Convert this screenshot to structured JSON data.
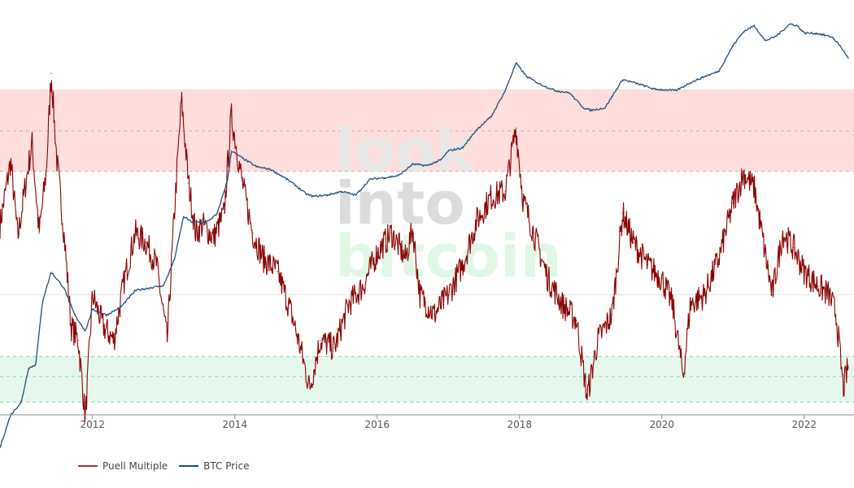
{
  "watermark": {
    "line1": "look",
    "line2": "into",
    "line3": "bitcoin"
  },
  "colors": {
    "puell": "#8b0000",
    "puell_zone": "#c06060",
    "btc": "#1f4e79",
    "red_band": "#ffdede",
    "green_band": "#e6f8ee",
    "red_dash": "#e8a0a0",
    "green_dash": "#7fd99a",
    "grid": "#e6e6e6",
    "axis": "#888888"
  },
  "chart_data": {
    "type": "line",
    "title": "",
    "xlabel": "",
    "ylabel": "",
    "xlim": [
      2010.7,
      2022.7
    ],
    "x_ticks": [
      2012,
      2014,
      2016,
      2018,
      2020,
      2022
    ],
    "x_tick_labels": [
      "2012",
      "2014",
      "2016",
      "2018",
      "2020",
      "2022"
    ],
    "red_zone": [
      4,
      10
    ],
    "green_zone": [
      0.3,
      0.5
    ],
    "puell_ylim": [
      0.26,
      25
    ],
    "btc_ylim": [
      0.2,
      100000
    ],
    "series": [
      {
        "name": "Puell Multiple",
        "axis": "left-log",
        "x": [
          2010.7,
          2010.85,
          2010.95,
          2011.05,
          2011.15,
          2011.25,
          2011.35,
          2011.42,
          2011.5,
          2011.6,
          2011.7,
          2011.8,
          2011.9,
          2012.0,
          2012.15,
          2012.3,
          2012.45,
          2012.6,
          2012.75,
          2012.9,
          2013.05,
          2013.15,
          2013.25,
          2013.35,
          2013.45,
          2013.55,
          2013.7,
          2013.85,
          2013.95,
          2014.1,
          2014.25,
          2014.4,
          2014.6,
          2014.8,
          2014.95,
          2015.05,
          2015.2,
          2015.4,
          2015.6,
          2015.8,
          2016.0,
          2016.2,
          2016.4,
          2016.5,
          2016.6,
          2016.8,
          2017.0,
          2017.2,
          2017.4,
          2017.6,
          2017.8,
          2017.95,
          2018.05,
          2018.2,
          2018.4,
          2018.6,
          2018.8,
          2018.95,
          2019.1,
          2019.3,
          2019.45,
          2019.6,
          2019.8,
          2020.0,
          2020.15,
          2020.3,
          2020.4,
          2020.6,
          2020.8,
          2021.0,
          2021.15,
          2021.3,
          2021.45,
          2021.55,
          2021.7,
          2021.85,
          2022.0,
          2022.2,
          2022.35,
          2022.45,
          2022.55,
          2022.62
        ],
        "values": [
          2.2,
          4.5,
          1.9,
          3.3,
          5.5,
          2.0,
          4.0,
          12.0,
          4.5,
          2.0,
          0.7,
          0.6,
          0.25,
          1.0,
          0.7,
          0.6,
          1.2,
          2.0,
          1.8,
          1.4,
          0.6,
          2.5,
          9.0,
          3.5,
          2.0,
          2.2,
          1.9,
          2.5,
          7.5,
          3.6,
          2.0,
          1.5,
          1.3,
          0.8,
          0.5,
          0.35,
          0.6,
          0.55,
          0.9,
          1.1,
          1.6,
          2.0,
          1.5,
          2.1,
          1.0,
          0.8,
          1.0,
          1.4,
          2.3,
          3.0,
          3.2,
          6.5,
          2.9,
          2.0,
          1.2,
          0.9,
          0.75,
          0.32,
          0.6,
          0.8,
          2.5,
          1.8,
          1.4,
          1.2,
          0.9,
          0.4,
          0.9,
          1.0,
          1.5,
          2.8,
          3.9,
          3.3,
          1.6,
          1.0,
          2.0,
          1.7,
          1.3,
          1.1,
          1.0,
          0.8,
          0.35,
          0.45
        ]
      },
      {
        "name": "BTC Price",
        "axis": "right-log",
        "x": [
          2010.7,
          2010.85,
          2011.0,
          2011.1,
          2011.2,
          2011.3,
          2011.42,
          2011.6,
          2011.75,
          2011.9,
          2012.0,
          2012.2,
          2012.4,
          2012.6,
          2012.8,
          2013.0,
          2013.15,
          2013.28,
          2013.4,
          2013.6,
          2013.75,
          2013.9,
          2013.95,
          2014.1,
          2014.3,
          2014.5,
          2014.7,
          2014.85,
          2015.0,
          2015.1,
          2015.3,
          2015.5,
          2015.7,
          2015.9,
          2016.1,
          2016.3,
          2016.5,
          2016.7,
          2016.9,
          2017.0,
          2017.2,
          2017.4,
          2017.6,
          2017.8,
          2017.95,
          2018.1,
          2018.3,
          2018.5,
          2018.7,
          2018.9,
          2019.0,
          2019.2,
          2019.45,
          2019.7,
          2019.9,
          2020.2,
          2020.4,
          2020.6,
          2020.8,
          2021.0,
          2021.15,
          2021.3,
          2021.45,
          2021.6,
          2021.8,
          2021.9,
          2022.0,
          2022.2,
          2022.4,
          2022.5,
          2022.62
        ],
        "values": [
          0.07,
          0.2,
          0.3,
          0.9,
          1.0,
          8,
          20,
          12,
          5,
          3,
          6,
          5,
          6.5,
          11,
          12,
          13,
          30,
          120,
          100,
          100,
          130,
          400,
          1000,
          800,
          600,
          550,
          420,
          330,
          250,
          230,
          240,
          270,
          240,
          400,
          420,
          450,
          650,
          620,
          750,
          1000,
          1100,
          2000,
          3000,
          7000,
          17000,
          11000,
          8500,
          7000,
          6500,
          4000,
          3700,
          4000,
          10000,
          8500,
          7300,
          7000,
          9000,
          11000,
          13000,
          30000,
          47000,
          57000,
          35000,
          40000,
          60000,
          57000,
          45000,
          44000,
          39000,
          30000,
          20000
        ]
      }
    ]
  }
}
